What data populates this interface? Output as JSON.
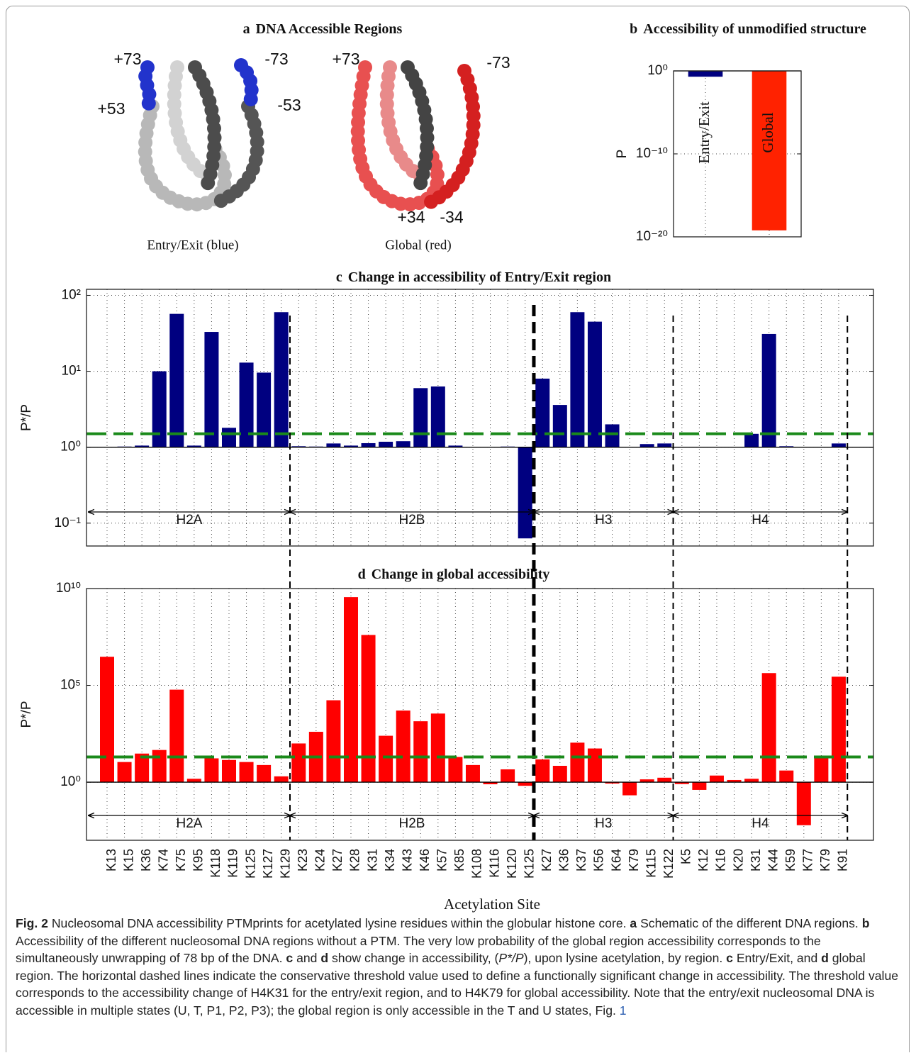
{
  "panel_a": {
    "label": "a",
    "title": "DNA Accessible Regions",
    "structures": [
      {
        "caption": "Entry/Exit (blue)",
        "labels": [
          "+73",
          "-73",
          "+53",
          "-53"
        ]
      },
      {
        "caption": "Global (red)",
        "labels": [
          "+73",
          "-73",
          "+34",
          "-34"
        ]
      }
    ]
  },
  "chart_data": [
    {
      "type": "bar",
      "panel": "b",
      "title": "Accessibility of unmodified structure",
      "y_label": "P",
      "categories": [
        "Entry/Exit",
        "Global"
      ],
      "values": [
        0.2,
        6e-20
      ],
      "colors": [
        "#000080",
        "#ff2200"
      ],
      "log": true,
      "ylim": [
        1e-20,
        1
      ],
      "yticks": [
        {
          "value": 1,
          "label": "10⁰"
        },
        {
          "value": 1e-10,
          "label": "10⁻¹⁰"
        },
        {
          "value": 1e-20,
          "label": "10⁻²⁰"
        }
      ],
      "grid": true
    },
    {
      "type": "grouped_bar",
      "panel": "c",
      "title": "Change in accessibility of Entry/Exit region",
      "y_label": "P*/P",
      "color": "#000080",
      "log": true,
      "ylim": [
        0.05,
        120
      ],
      "yticks": [
        {
          "value": 0.1,
          "label": "10⁻¹"
        },
        {
          "value": 1,
          "label": "10⁰"
        },
        {
          "value": 10,
          "label": "10¹"
        },
        {
          "value": 100,
          "label": "10²"
        }
      ],
      "grid": true,
      "threshold": 1.5,
      "threshold_color": "#1a8a1a",
      "groups": [
        {
          "name": "H2A",
          "values": [
            1.0,
            1.02,
            1.05,
            10,
            57,
            1.05,
            33,
            1.8,
            13,
            9.6,
            60
          ]
        },
        {
          "name": "H2B",
          "values": [
            1.03,
            1.02,
            1.12,
            1.05,
            1.13,
            1.18,
            1.2,
            6,
            6.3,
            1.05,
            1.0,
            1.0,
            1.02,
            0.063
          ]
        },
        {
          "name": "H3",
          "values": [
            8,
            3.6,
            60,
            45,
            2.0,
            1.0,
            1.1,
            1.12
          ]
        },
        {
          "name": "H4",
          "values": [
            1.0,
            1.0,
            1.0,
            1.0,
            1.5,
            31,
            1.03,
            1.0,
            1.0,
            1.12
          ]
        }
      ]
    },
    {
      "type": "grouped_bar",
      "panel": "d",
      "title": "Change in global accessibility",
      "y_label": "P*/P",
      "x_label": "Acetylation Site",
      "color": "#ff0000",
      "log": true,
      "ylim": [
        0.001,
        10000000000
      ],
      "yticks": [
        {
          "value": 1,
          "label": "10⁰"
        },
        {
          "value": 100000,
          "label": "10⁵"
        },
        {
          "value": 10000000000,
          "label": "10¹⁰"
        }
      ],
      "grid": true,
      "threshold": 20,
      "threshold_color": "#1a8a1a",
      "groups": [
        {
          "name": "H2A",
          "categories": [
            "K13",
            "K15",
            "K36",
            "K74",
            "K75",
            "K95",
            "K118",
            "K119",
            "K125",
            "K127",
            "K129"
          ],
          "values": [
            3000000,
            11,
            30,
            46,
            60000,
            1.5,
            17,
            14,
            11,
            7.7,
            2
          ]
        },
        {
          "name": "H2B",
          "categories": [
            "K23",
            "K24",
            "K27",
            "K28",
            "K31",
            "K34",
            "K43",
            "K46",
            "K57",
            "K85",
            "K108",
            "K116",
            "K120",
            "K125"
          ],
          "values": [
            100,
            400,
            17000,
            3600000000,
            40000000,
            250,
            5000,
            1400,
            3500,
            20,
            7.7,
            0.78,
            4.6,
            0.65
          ]
        },
        {
          "name": "H3",
          "categories": [
            "K27",
            "K36",
            "K37",
            "K56",
            "K64",
            "K79",
            "K115",
            "K122"
          ],
          "values": [
            15,
            7,
            110,
            55,
            0.85,
            0.21,
            1.4,
            1.7
          ]
        },
        {
          "name": "H4",
          "categories": [
            "K5",
            "K12",
            "K16",
            "K20",
            "K31",
            "K44",
            "K59",
            "K77",
            "K79",
            "K91"
          ],
          "values": [
            0.8,
            0.4,
            2.2,
            1.3,
            1.5,
            430000,
            4,
            0.006,
            20,
            280000
          ]
        }
      ]
    }
  ],
  "caption": [
    "Fig. 2",
    "  Nucleosomal DNA accessibility PTMprints for acetylated lysine residues within the globular histone core. ",
    "a",
    " Schematic of the different DNA regions. ",
    "b",
    " Accessibility of the different nucleosomal DNA regions without a PTM. The very low probability of the global region accessibility corresponds to the simultaneously unwrapping of 78 bp of the DNA. ",
    "c",
    " and ",
    "d",
    " show change in accessibility, (",
    "P*/P",
    "), upon lysine acetylation, by region. ",
    "c",
    " Entry/Exit, and ",
    "d",
    " global region. The horizontal dashed lines indicate the conservative threshold value used to define a functionally significant change in accessibility. The threshold value corresponds to the accessibility change of H4K31 for the entry/exit region, and to H4K79 for global accessibility. Note that the entry/exit nucleosomal DNA is accessible in multiple states (U, T, P1, P2, P3); the global region is only accessible in the T and U states, Fig. ",
    "1"
  ]
}
